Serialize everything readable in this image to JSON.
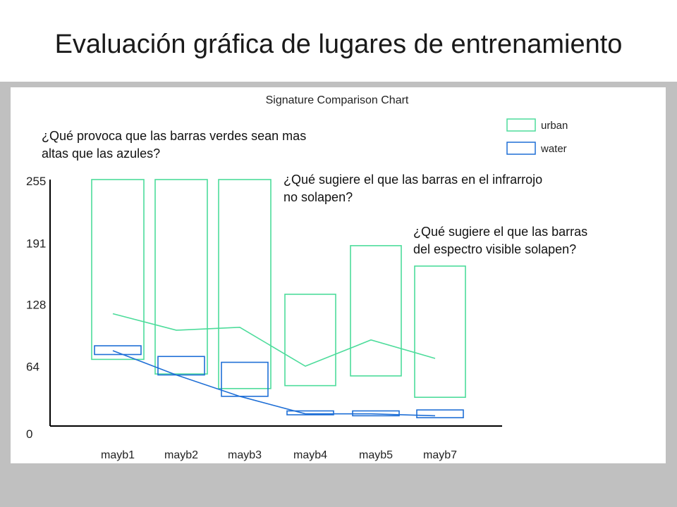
{
  "slide": {
    "title": "Evaluación gráfica de lugares de entrenamiento",
    "questions": [
      {
        "line1": "¿Qué provoca que las barras verdes sean mas",
        "line2": "altas que las azules?"
      },
      {
        "line1": "¿Qué sugiere el que las barras en el infrarrojo",
        "line2": "no solapen?"
      },
      {
        "line1": "¿Qué sugiere el que las barras",
        "line2": "del espectro visible solapen?"
      }
    ]
  },
  "chart_data": {
    "type": "bar",
    "title": "Signature Comparison Chart",
    "categories": [
      "mayb1",
      "mayb2",
      "mayb3",
      "mayb4",
      "mayb5",
      "mayb7"
    ],
    "y_ticks": [
      "255",
      "191",
      "128",
      "64",
      "0"
    ],
    "ylim": [
      0,
      255
    ],
    "legend_position": "top-right",
    "series": [
      {
        "name": "urban",
        "color": "#4ddc9b",
        "min": [
          70,
          55,
          40,
          43,
          53,
          31
        ],
        "max": [
          255,
          255,
          255,
          137,
          187,
          166
        ],
        "mean": [
          117,
          100,
          103,
          63,
          90,
          71
        ]
      },
      {
        "name": "water",
        "color": "#1f6fd6",
        "min": [
          75,
          54,
          32,
          13,
          12,
          10
        ],
        "max": [
          84,
          73,
          67,
          17,
          17,
          18
        ],
        "mean": [
          79,
          54,
          32,
          14,
          14,
          12
        ]
      }
    ]
  }
}
